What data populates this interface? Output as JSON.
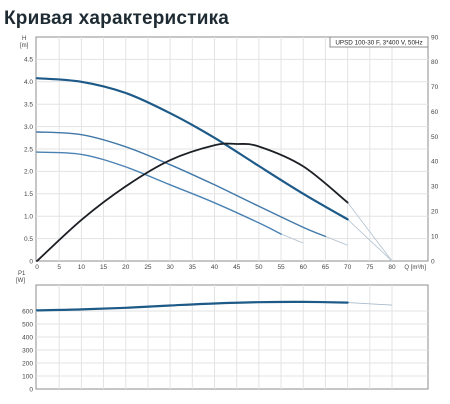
{
  "page": {
    "title": "Кривая характеристика"
  },
  "chart_data": [
    {
      "type": "line",
      "title": "",
      "info_box": "UPSD 100-30 F, 3*400 V, 50Hz",
      "ylabel_left": "H",
      "ylabel_left_unit": "[m]",
      "xlabel": "Q [m³/h]",
      "xlim": [
        0,
        85
      ],
      "ylim_left": [
        0,
        5
      ],
      "ylim_right": [
        0,
        90
      ],
      "x_ticks": [
        0,
        5,
        10,
        15,
        20,
        25,
        30,
        35,
        40,
        45,
        50,
        55,
        60,
        65,
        70,
        75,
        80
      ],
      "x_tick_labels": [
        "0",
        "5",
        "10",
        "15",
        "20",
        "25",
        "30",
        "35",
        "40",
        "45",
        "50",
        "55",
        "60",
        "65",
        "70",
        "75",
        "80"
      ],
      "x_axis_unit_label": "Q [m³/h]",
      "y_left_ticks": [
        "0",
        "0.5",
        "1.0",
        "1.5",
        "2.0",
        "2.5",
        "3.0",
        "3.5",
        "4.0",
        "4.5"
      ],
      "y_right_ticks": [
        "0",
        "10",
        "20",
        "30",
        "40",
        "50",
        "60",
        "70",
        "80",
        "90"
      ],
      "grid": true,
      "series": [
        {
          "name": "",
          "axis": "left",
          "color": "#1e5a88",
          "width": 2.2,
          "x": [
            0,
            10,
            20,
            30,
            40,
            50,
            60,
            70
          ],
          "y": [
            4.08,
            4.0,
            3.75,
            3.3,
            2.75,
            2.12,
            1.5,
            0.93
          ],
          "ext_x": [
            70,
            80
          ],
          "ext_y": [
            0.93,
            0.0
          ]
        },
        {
          "name": "",
          "axis": "left",
          "color": "#4178a8",
          "width": 1.4,
          "x": [
            0,
            10,
            20,
            30,
            40,
            50,
            60,
            65
          ],
          "y": [
            2.88,
            2.82,
            2.55,
            2.15,
            1.7,
            1.22,
            0.75,
            0.55
          ],
          "ext_x": [
            65,
            70
          ],
          "ext_y": [
            0.55,
            0.35
          ]
        },
        {
          "name": "",
          "axis": "left",
          "color": "#4a82b3",
          "width": 1.4,
          "x": [
            0,
            10,
            20,
            30,
            40,
            50,
            55
          ],
          "y": [
            2.43,
            2.38,
            2.1,
            1.7,
            1.3,
            0.85,
            0.6
          ],
          "ext_x": [
            55,
            60
          ],
          "ext_y": [
            0.6,
            0.4
          ]
        },
        {
          "name": "",
          "axis": "right",
          "color": "#1c1f24",
          "width": 1.8,
          "x": [
            0,
            10,
            20,
            30,
            40,
            45,
            50,
            60,
            70
          ],
          "y": [
            0,
            16.5,
            30,
            40.5,
            46.5,
            47,
            46,
            38,
            23.5
          ],
          "ext_x": [
            70,
            80
          ],
          "ext_y": [
            23.5,
            0
          ]
        }
      ]
    },
    {
      "type": "line",
      "title": "",
      "ylabel": "P1",
      "ylabel_unit": "[W]",
      "xlim": [
        0,
        85
      ],
      "ylim": [
        0,
        800
      ],
      "y_ticks": [
        "0",
        "100",
        "200",
        "300",
        "400",
        "500",
        "600"
      ],
      "grid": true,
      "series": [
        {
          "name": "",
          "color": "#1e5a88",
          "width": 2.2,
          "x": [
            0,
            10,
            20,
            30,
            40,
            50,
            60,
            70
          ],
          "y": [
            605,
            612,
            625,
            642,
            658,
            668,
            670,
            665
          ],
          "ext_x": [
            70,
            80
          ],
          "ext_y": [
            665,
            645
          ]
        }
      ]
    }
  ]
}
